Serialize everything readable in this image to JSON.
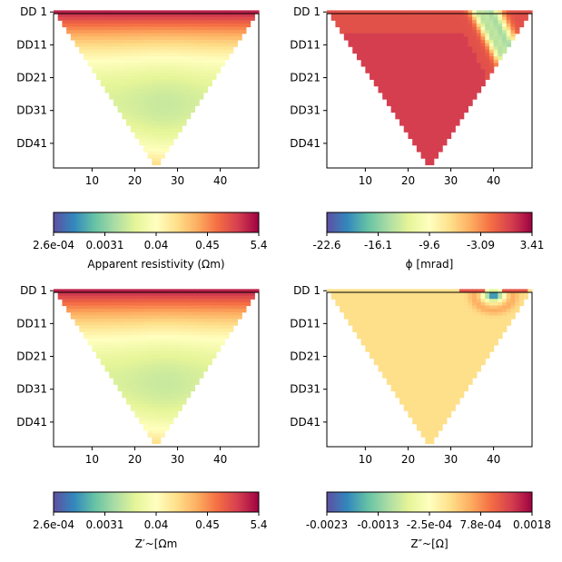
{
  "chart_data": [
    {
      "type": "heatmap",
      "description": "pseudosection triangle, smooth field",
      "title": "",
      "xlabel": "",
      "ylabel": "",
      "xlim": [
        1,
        49
      ],
      "x_ticks": [
        10,
        20,
        30,
        40
      ],
      "y_ticks": [
        "DD 1",
        "DD11",
        "DD21",
        "DD31",
        "DD41"
      ],
      "field": "resistivity",
      "colorbar": {
        "label": "Apparent resistivity (Ωm)",
        "ticks": [
          "2.6e-04",
          "0.0031",
          "0.04",
          "0.45",
          "5.4"
        ],
        "colormap": "Spectral_r"
      }
    },
    {
      "type": "heatmap",
      "description": "pseudosection triangle, diagonal phase anomaly",
      "title": "",
      "xlabel": "",
      "ylabel": "",
      "xlim": [
        1,
        49
      ],
      "x_ticks": [
        10,
        20,
        30,
        40
      ],
      "y_ticks": [
        "DD 1",
        "DD11",
        "DD21",
        "DD31",
        "DD41"
      ],
      "field": "phase",
      "colorbar": {
        "label": "ϕ [mrad]",
        "ticks": [
          "-22.6",
          "-16.1",
          "-9.6",
          "-3.09",
          "3.41"
        ],
        "colormap": "Spectral_r"
      }
    },
    {
      "type": "heatmap",
      "description": "pseudosection triangle, smooth field",
      "title": "",
      "xlabel": "",
      "ylabel": "",
      "xlim": [
        1,
        49
      ],
      "x_ticks": [
        10,
        20,
        30,
        40
      ],
      "y_ticks": [
        "DD 1",
        "DD11",
        "DD21",
        "DD31",
        "DD41"
      ],
      "field": "real",
      "colorbar": {
        "label": "Z′~[Ωm",
        "ticks": [
          "2.6e-04",
          "0.0031",
          "0.04",
          "0.45",
          "5.4"
        ],
        "colormap": "Spectral_r"
      }
    },
    {
      "type": "heatmap",
      "description": "pseudosection triangle, local anomaly near x=40 at top",
      "title": "",
      "xlabel": "",
      "ylabel": "",
      "xlim": [
        1,
        49
      ],
      "x_ticks": [
        10,
        20,
        30,
        40
      ],
      "y_ticks": [
        "DD 1",
        "DD11",
        "DD21",
        "DD31",
        "DD41"
      ],
      "field": "imag",
      "colorbar": {
        "label": "Z″~[Ω]",
        "ticks": [
          "-0.0023",
          "-0.0013",
          "-2.5e-04",
          "7.8e-04",
          "0.0018"
        ],
        "colormap": "Spectral_r"
      }
    }
  ]
}
